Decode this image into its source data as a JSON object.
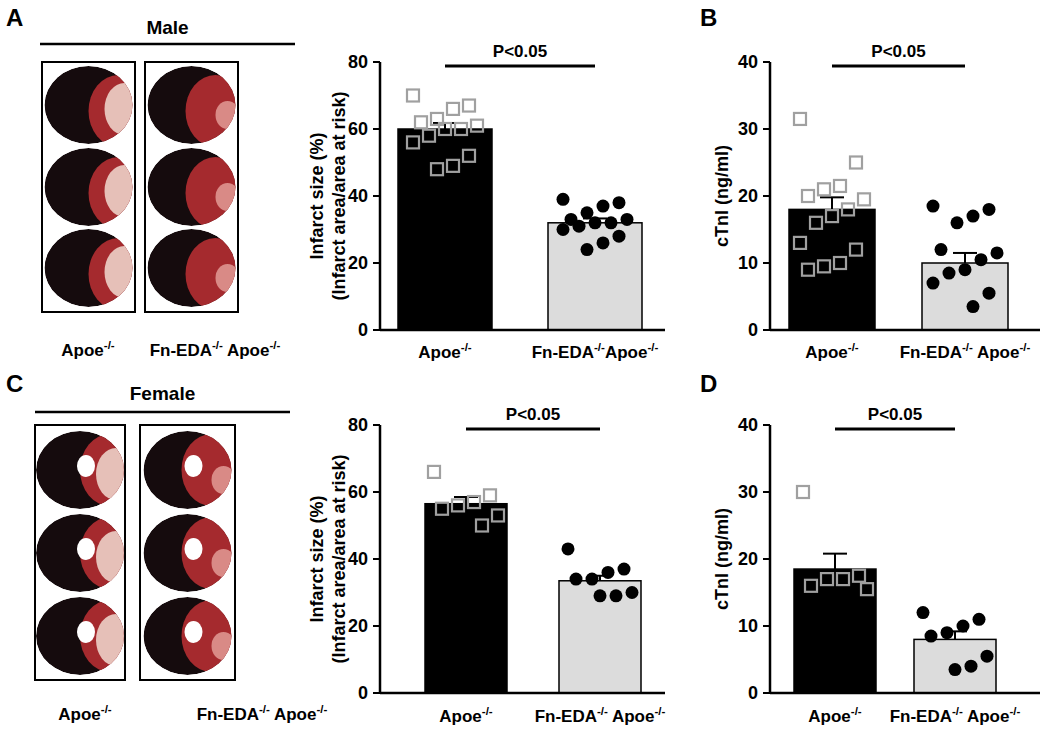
{
  "panel_labels": [
    "A",
    "B",
    "C",
    "D"
  ],
  "image_panels": [
    {
      "title": "Male",
      "labels": [
        "Apoe-/-",
        "Fn-EDA-/- Apoe-/-"
      ]
    },
    {
      "title": "Female",
      "labels": [
        "Apoe-/-",
        "Fn-EDA-/- Apoe-/-"
      ]
    }
  ],
  "chart_data": [
    {
      "type": "bar",
      "y_label": [
        "Infarct size (%)",
        "(Infarct area/area at risk)"
      ],
      "categories": [
        "Apoe-/-",
        "Fn-EDA-/-Apoe-/-"
      ],
      "values": [
        60,
        32
      ],
      "errors": [
        1.8,
        1.3
      ],
      "points": [
        [
          70,
          67,
          66,
          63,
          62,
          61,
          60,
          60,
          58,
          56,
          52,
          49,
          48
        ],
        [
          39,
          38,
          37,
          35,
          33,
          33,
          32,
          32,
          31,
          30,
          28,
          26,
          24
        ]
      ],
      "colors": [
        "#000000",
        "#dcdcdc"
      ],
      "ylim": [
        0,
        80
      ],
      "yticks": [
        0,
        20,
        40,
        60,
        80
      ],
      "annotation": "P<0.05"
    },
    {
      "type": "bar",
      "y_label": [
        "cTnI (ng/ml)"
      ],
      "categories": [
        "Apoe-/-",
        "Fn-EDA-/- Apoe-/-"
      ],
      "values": [
        18,
        10
      ],
      "errors": [
        1.8,
        1.5
      ],
      "points": [
        [
          31.5,
          25,
          21.5,
          21,
          20,
          19.5,
          18,
          17,
          16,
          13,
          12,
          10,
          9.5,
          9
        ],
        [
          18.5,
          18,
          17,
          16,
          12,
          11.5,
          10.5,
          9,
          8.5,
          7,
          5.5,
          3.5
        ]
      ],
      "colors": [
        "#000000",
        "#dcdcdc"
      ],
      "ylim": [
        0,
        40
      ],
      "yticks": [
        0,
        10,
        20,
        30,
        40
      ],
      "annotation": "P<0.05"
    },
    {
      "type": "bar",
      "y_label": [
        "Infarct size (%)",
        "(Infarct area/area at risk)"
      ],
      "categories": [
        "Apoe-/-",
        "Fn-EDA-/- Apoe-/-"
      ],
      "values": [
        56.5,
        33.5
      ],
      "errors": [
        2,
        1.5
      ],
      "points": [
        [
          66,
          59,
          57,
          56,
          55,
          53,
          50
        ],
        [
          43,
          37,
          36,
          34,
          34,
          30,
          29,
          29
        ]
      ],
      "colors": [
        "#000000",
        "#dcdcdc"
      ],
      "ylim": [
        0,
        80
      ],
      "yticks": [
        0,
        20,
        40,
        60,
        80
      ],
      "annotation": "P<0.05"
    },
    {
      "type": "bar",
      "y_label": [
        "cTnI (ng/ml)"
      ],
      "categories": [
        "Apoe-/-",
        "Fn-EDA-/- Apoe-/-"
      ],
      "values": [
        18.5,
        8
      ],
      "errors": [
        2.3,
        1.2
      ],
      "points": [
        [
          30,
          17.5,
          17,
          17,
          16,
          15.5
        ],
        [
          12,
          11,
          10,
          9,
          8.5,
          5.5,
          4,
          3.5
        ]
      ],
      "colors": [
        "#000000",
        "#dcdcdc"
      ],
      "ylim": [
        0,
        40
      ],
      "yticks": [
        0,
        10,
        20,
        30,
        40
      ],
      "annotation": "P<0.05"
    }
  ]
}
